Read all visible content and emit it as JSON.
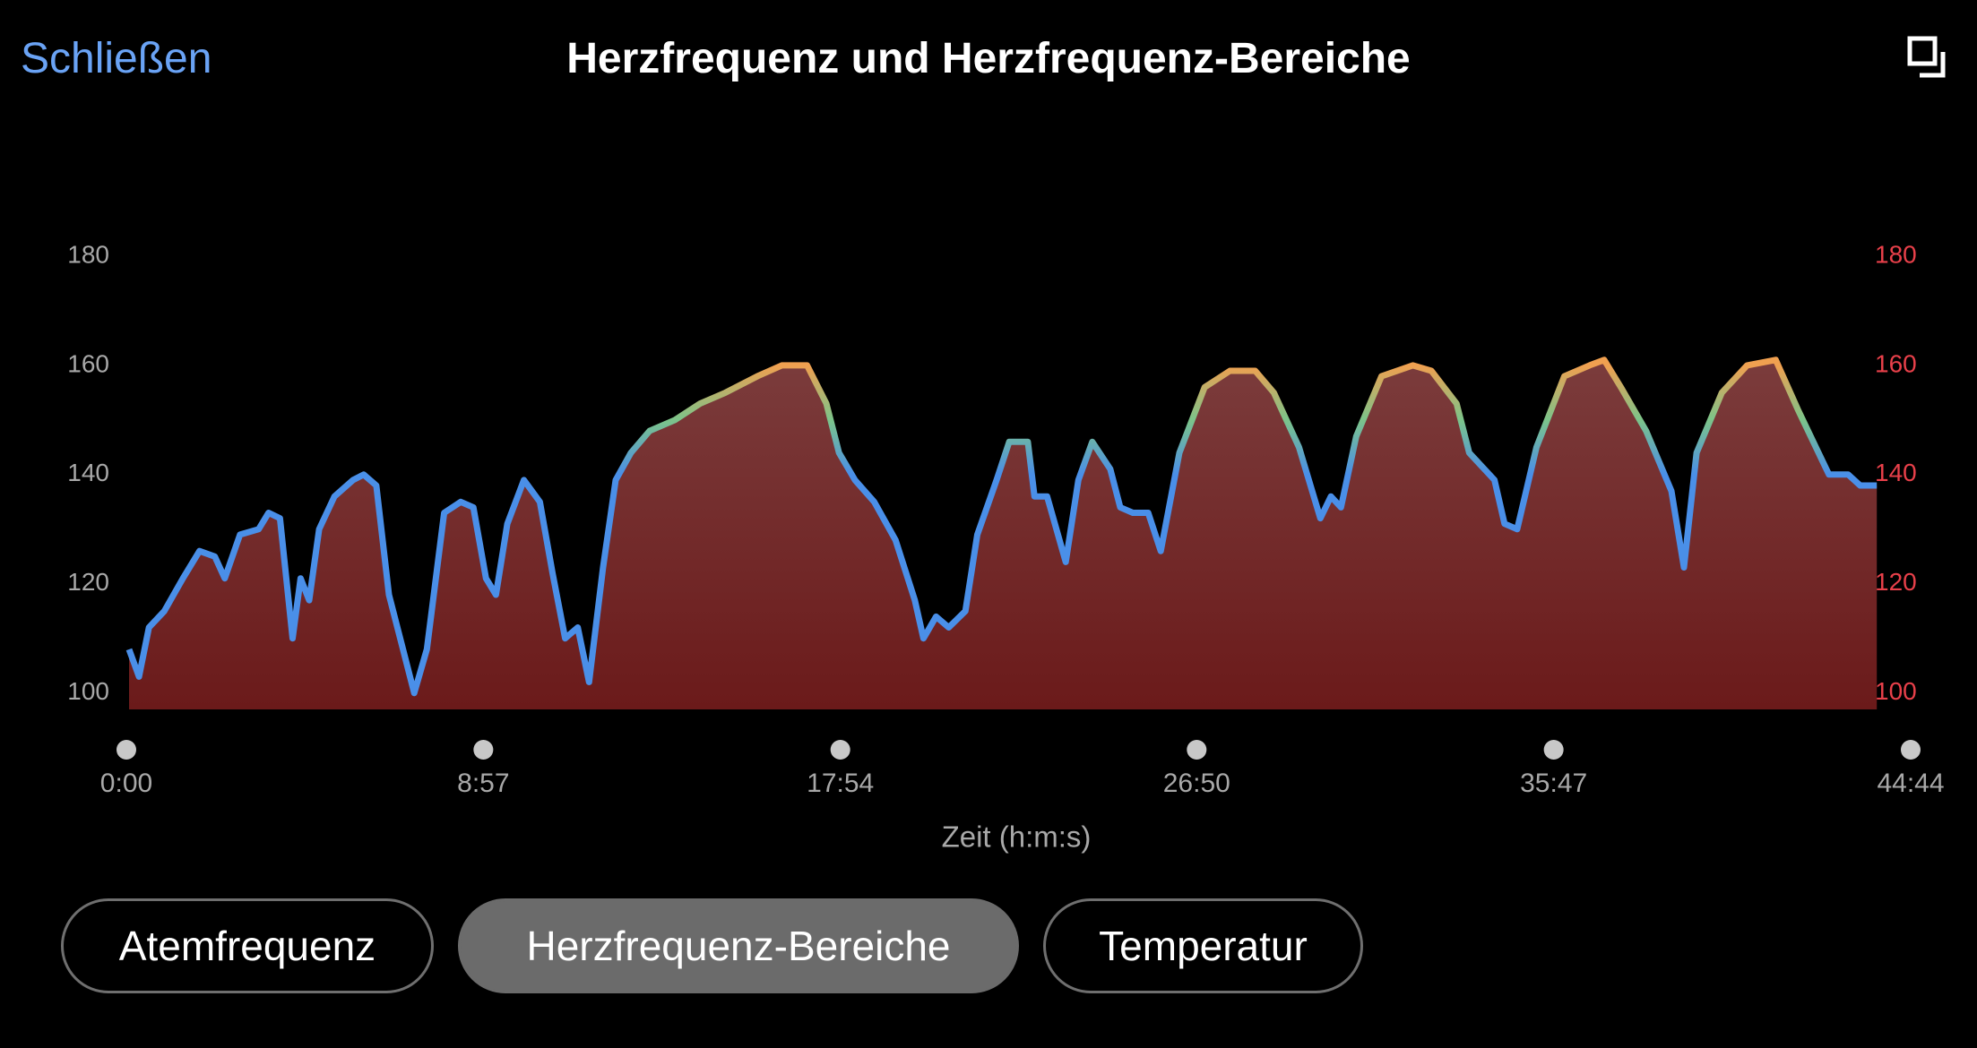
{
  "close_label": "Schließen",
  "tabs": [
    "Atemfrequenz",
    "Herzfrequenz-Bereiche",
    "Temperatur"
  ],
  "chart_data": {
    "type": "area",
    "title": "Herzfrequenz und Herzfrequenz-Bereiche",
    "x_label": "Zeit (h:m:s)",
    "x": [
      4,
      19,
      34,
      57,
      85,
      110,
      133,
      148,
      171,
      199,
      214,
      231,
      250,
      262,
      275,
      290,
      313,
      341,
      357,
      376,
      395,
      414,
      433,
      452,
      478,
      503,
      522,
      541,
      556,
      573,
      598,
      622,
      641,
      660,
      679,
      696,
      717,
      736,
      759,
      787,
      825,
      863,
      901,
      949,
      986,
      1024,
      1053,
      1072,
      1096,
      1125,
      1157,
      1186,
      1199,
      1218,
      1237,
      1262,
      1280,
      1309,
      1328,
      1356,
      1366,
      1385,
      1413,
      1432,
      1453,
      1480,
      1495,
      1514,
      1537,
      1556,
      1584,
      1622,
      1660,
      1698,
      1726,
      1764,
      1796,
      1812,
      1827,
      1850,
      1888,
      1935,
      1963,
      2001,
      2020,
      2058,
      2073,
      2092,
      2121,
      2163,
      2201,
      2223,
      2248,
      2286,
      2324,
      2343,
      2362,
      2400,
      2438,
      2481,
      2514,
      2561,
      2590,
      2608,
      2633
    ],
    "values": [
      108,
      103,
      112,
      115,
      121,
      126,
      125,
      121,
      129,
      130,
      133,
      132,
      110,
      121,
      117,
      130,
      136,
      139,
      140,
      138,
      118,
      109,
      100,
      108,
      133,
      135,
      134,
      121,
      118,
      131,
      139,
      135,
      122,
      110,
      112,
      102,
      123,
      139,
      144,
      148,
      150,
      153,
      155,
      158,
      160,
      160,
      153,
      144,
      139,
      135,
      128,
      117,
      110,
      114,
      112,
      115,
      129,
      139,
      146,
      146,
      136,
      136,
      124,
      139,
      146,
      141,
      134,
      133,
      133,
      126,
      144,
      156,
      159,
      159,
      155,
      145,
      132,
      136,
      134,
      147,
      158,
      160,
      159,
      153,
      144,
      139,
      131,
      130,
      145,
      158,
      160,
      161,
      156,
      148,
      137,
      123,
      144,
      155,
      160,
      161,
      152,
      140,
      140,
      138,
      138
    ],
    "xlim": [
      0,
      2684
    ],
    "xticks": [
      {
        "value": 0,
        "label": "0:00"
      },
      {
        "value": 537,
        "label": "8:57"
      },
      {
        "value": 1074,
        "label": "17:54"
      },
      {
        "value": 1610,
        "label": "26:50"
      },
      {
        "value": 2147,
        "label": "35:47"
      },
      {
        "value": 2684,
        "label": "44:44"
      }
    ],
    "ylim": [
      97,
      190
    ],
    "yticks": [
      100,
      120,
      140,
      160,
      180
    ],
    "y2lim": [
      97,
      190
    ],
    "y2ticks": [
      100,
      120,
      140,
      160,
      180
    ],
    "line_colors": [
      "#4a8fe8",
      "#7cc48a",
      "#f0a050"
    ],
    "fill_colors": [
      "#7b3c3c",
      "#6b1a1a"
    ]
  }
}
